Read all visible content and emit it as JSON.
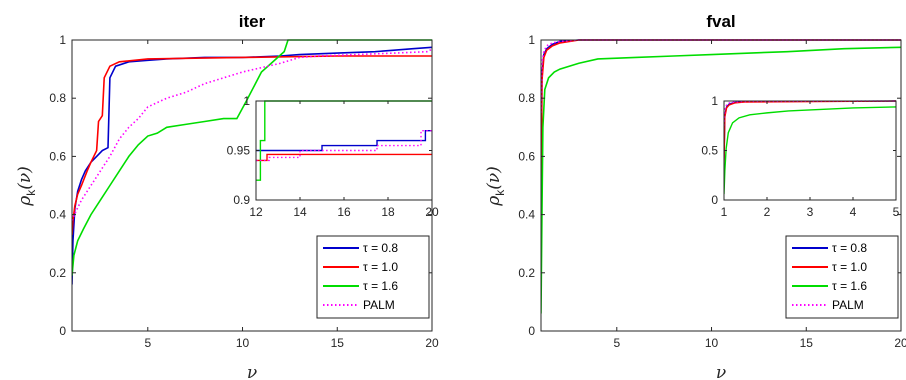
{
  "chart_data": [
    {
      "type": "line",
      "title": "iter",
      "xlabel": "ν",
      "ylabel": "ρk(ν)",
      "xlim": [
        1,
        20
      ],
      "ylim": [
        0,
        1
      ],
      "xticks": [
        5,
        10,
        15,
        20
      ],
      "yticks": [
        0,
        0.2,
        0.4,
        0.6,
        0.8,
        1
      ],
      "legend": "bottom-right",
      "legend_entries": [
        "τ = 0.8",
        "τ = 1.0",
        "τ = 1.6",
        "PALM"
      ],
      "series": [
        {
          "name": "τ = 0.8",
          "color": "#0000cc",
          "dash": "solid",
          "x": [
            1,
            1.05,
            1.15,
            1.3,
            1.5,
            1.7,
            2.0,
            2.3,
            2.6,
            2.9,
            3.0,
            3.3,
            4,
            5,
            6,
            8,
            10,
            12,
            13,
            15,
            17,
            18,
            19,
            20
          ],
          "y": [
            0.16,
            0.31,
            0.42,
            0.48,
            0.52,
            0.55,
            0.58,
            0.6,
            0.62,
            0.63,
            0.87,
            0.91,
            0.925,
            0.93,
            0.935,
            0.94,
            0.94,
            0.945,
            0.95,
            0.955,
            0.96,
            0.965,
            0.97,
            0.975
          ]
        },
        {
          "name": "τ = 1.0",
          "color": "#ff0000",
          "dash": "solid",
          "x": [
            1,
            1.05,
            1.15,
            1.3,
            1.5,
            1.8,
            2.0,
            2.3,
            2.4,
            2.6,
            2.7,
            3.0,
            3.5,
            5,
            10,
            15,
            20
          ],
          "y": [
            0.33,
            0.38,
            0.43,
            0.47,
            0.5,
            0.55,
            0.58,
            0.62,
            0.72,
            0.74,
            0.87,
            0.91,
            0.925,
            0.935,
            0.94,
            0.945,
            0.945
          ]
        },
        {
          "name": "τ = 1.6",
          "color": "#00dd00",
          "dash": "solid",
          "x": [
            1,
            1.1,
            1.3,
            1.6,
            2.0,
            2.5,
            3.0,
            3.5,
            4.0,
            4.5,
            5.0,
            5.5,
            6.0,
            7.0,
            8.0,
            9.0,
            9.7,
            10.2,
            11.0,
            12.2,
            12.4,
            20
          ],
          "y": [
            0.19,
            0.26,
            0.31,
            0.35,
            0.4,
            0.45,
            0.5,
            0.55,
            0.6,
            0.64,
            0.67,
            0.68,
            0.7,
            0.71,
            0.72,
            0.73,
            0.73,
            0.79,
            0.89,
            0.96,
            1.0,
            1.0
          ]
        },
        {
          "name": "PALM",
          "color": "#ff00ff",
          "dash": "dotted",
          "x": [
            1,
            1.2,
            1.5,
            1.8,
            2.0,
            2.5,
            3.0,
            3.5,
            4.0,
            4.5,
            5.0,
            6.0,
            7.0,
            8.0,
            9.0,
            10.0,
            11.0,
            12.0,
            13.0,
            14.0,
            16.0,
            18.0,
            19.8,
            20
          ],
          "y": [
            0.38,
            0.41,
            0.45,
            0.48,
            0.5,
            0.55,
            0.6,
            0.66,
            0.7,
            0.73,
            0.77,
            0.8,
            0.82,
            0.85,
            0.87,
            0.89,
            0.905,
            0.92,
            0.94,
            0.945,
            0.95,
            0.955,
            0.96,
            0.97
          ]
        }
      ],
      "inset": {
        "xlim": [
          12,
          20
        ],
        "ylim": [
          0.9,
          1
        ],
        "xticks": [
          12,
          14,
          16,
          18,
          20
        ],
        "yticks": [
          0.9,
          0.95,
          1
        ],
        "series": [
          {
            "name": "τ = 0.8",
            "color": "#0000cc",
            "dash": "solid",
            "x": [
              12,
              15,
              15,
              17.5,
              17.5,
              19.7,
              19.7,
              20
            ],
            "y": [
              0.95,
              0.95,
              0.955,
              0.955,
              0.96,
              0.96,
              0.97,
              0.97
            ]
          },
          {
            "name": "τ = 1.0",
            "color": "#ff0000",
            "dash": "solid",
            "x": [
              12,
              12.5,
              12.5,
              20
            ],
            "y": [
              0.94,
              0.94,
              0.946,
              0.946
            ]
          },
          {
            "name": "τ = 1.6",
            "color": "#00dd00",
            "dash": "solid",
            "x": [
              12,
              12.2,
              12.2,
              12.4,
              12.4,
              20
            ],
            "y": [
              0.92,
              0.92,
              0.96,
              0.96,
              1.0,
              1.0
            ]
          },
          {
            "name": "PALM",
            "color": "#ff00ff",
            "dash": "dotted",
            "x": [
              12,
              12.6,
              12.6,
              14,
              14,
              17.5,
              17.5,
              19.5,
              19.5,
              20
            ],
            "y": [
              0.94,
              0.94,
              0.943,
              0.943,
              0.95,
              0.95,
              0.955,
              0.955,
              0.97,
              0.97
            ]
          }
        ]
      }
    },
    {
      "type": "line",
      "title": "fval",
      "xlabel": "ν",
      "ylabel": "ρk(ν)",
      "xlim": [
        1,
        20
      ],
      "ylim": [
        0,
        1
      ],
      "xticks": [
        5,
        10,
        15,
        20
      ],
      "yticks": [
        0,
        0.2,
        0.4,
        0.6,
        0.8,
        1
      ],
      "legend": "bottom-right",
      "legend_entries": [
        "τ = 0.8",
        "τ = 1.0",
        "τ = 1.6",
        "PALM"
      ],
      "series": [
        {
          "name": "τ = 0.8",
          "color": "#0000cc",
          "dash": "solid",
          "x": [
            1,
            1.05,
            1.15,
            1.3,
            1.6,
            2.0,
            3.0,
            20
          ],
          "y": [
            0.4,
            0.88,
            0.95,
            0.97,
            0.985,
            0.995,
            1.0,
            1.0
          ]
        },
        {
          "name": "τ = 1.0",
          "color": "#ff0000",
          "dash": "solid",
          "x": [
            1,
            1.05,
            1.15,
            1.3,
            1.6,
            2.0,
            3.0,
            20
          ],
          "y": [
            0.35,
            0.86,
            0.94,
            0.965,
            0.98,
            0.99,
            1.0,
            1.0
          ]
        },
        {
          "name": "τ = 1.6",
          "color": "#00dd00",
          "dash": "solid",
          "x": [
            1,
            1.05,
            1.1,
            1.2,
            1.4,
            1.7,
            2.0,
            3.0,
            4.0,
            6.0,
            8.0,
            10.0,
            14.0,
            17.0,
            20.0
          ],
          "y": [
            0.06,
            0.4,
            0.7,
            0.83,
            0.87,
            0.89,
            0.9,
            0.92,
            0.935,
            0.94,
            0.945,
            0.95,
            0.96,
            0.97,
            0.975
          ]
        },
        {
          "name": "PALM",
          "color": "#ff00ff",
          "dash": "dotted",
          "x": [
            1,
            1.05,
            1.15,
            1.3,
            1.6,
            2.0,
            3.0,
            20
          ],
          "y": [
            0.75,
            0.92,
            0.96,
            0.98,
            0.99,
            0.995,
            1.0,
            1.0
          ]
        }
      ],
      "inset": {
        "xlim": [
          1,
          5
        ],
        "ylim": [
          0,
          1
        ],
        "xticks": [
          1,
          2,
          3,
          4,
          5
        ],
        "yticks": [
          0,
          0.5,
          1
        ],
        "series": [
          {
            "name": "τ = 0.8",
            "color": "#0000cc",
            "dash": "solid",
            "x": [
              1,
              1.02,
              1.06,
              1.12,
              1.25,
              1.5,
              5
            ],
            "y": [
              0.4,
              0.86,
              0.94,
              0.97,
              0.985,
              0.995,
              1.0
            ]
          },
          {
            "name": "τ = 1.0",
            "color": "#ff0000",
            "dash": "solid",
            "x": [
              1,
              1.02,
              1.06,
              1.12,
              1.25,
              1.5,
              5
            ],
            "y": [
              0.35,
              0.84,
              0.93,
              0.96,
              0.98,
              0.99,
              1.0
            ]
          },
          {
            "name": "τ = 1.6",
            "color": "#00dd00",
            "dash": "solid",
            "x": [
              1,
              1.02,
              1.05,
              1.1,
              1.2,
              1.35,
              1.6,
              2.0,
              2.5,
              3.0,
              4.0,
              5.0
            ],
            "y": [
              0.06,
              0.3,
              0.52,
              0.68,
              0.78,
              0.83,
              0.86,
              0.88,
              0.9,
              0.91,
              0.93,
              0.94
            ]
          },
          {
            "name": "PALM",
            "color": "#ff00ff",
            "dash": "dotted",
            "x": [
              1,
              1.02,
              1.06,
              1.12,
              1.25,
              1.5,
              5
            ],
            "y": [
              0.75,
              0.92,
              0.96,
              0.98,
              0.99,
              0.995,
              1.0
            ]
          }
        ]
      }
    }
  ]
}
